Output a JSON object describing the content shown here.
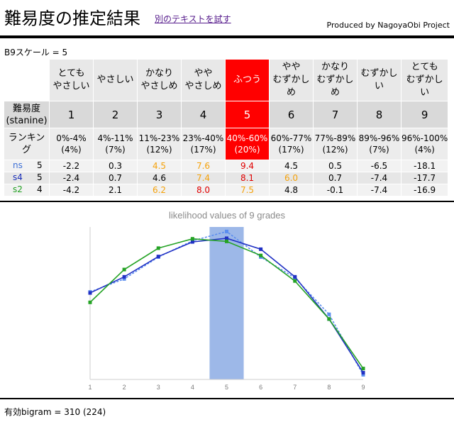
{
  "header": {
    "title": "難易度の推定結果",
    "link_text": "別のテキストを試す",
    "producer": "Produced by NagoyaObi Project"
  },
  "summary": {
    "b9_scale": "B9スケール = 5"
  },
  "table": {
    "selected_index": 4,
    "levels": [
      "とても\nやさしい",
      "やさしい",
      "かなり\nやさしめ",
      "やや\nやさしめ",
      "ふつう",
      "やや\nむずかし\nめ",
      "かなり\nむずかし\nめ",
      "むずかし\nい",
      "とても\nむずかし\nい"
    ],
    "grade_label": "難易度\n(stanine)",
    "grades": [
      "1",
      "2",
      "3",
      "4",
      "5",
      "6",
      "7",
      "8",
      "9"
    ],
    "ranking_label": "ランキン\nグ",
    "rankings": [
      "0%-4%\n(4%)",
      "4%-11%\n(7%)",
      "11%-23%\n(12%)",
      "23%-40%\n(17%)",
      "40%-60%\n(20%)",
      "60%-77%\n(17%)",
      "77%-89%\n(12%)",
      "89%-96%\n(7%)",
      "96%-100%\n(4%)"
    ],
    "scores": [
      {
        "name": "ns",
        "count": "5",
        "color": "#3c6fd6",
        "values": [
          "-2.2",
          "0.3",
          "4.5",
          "7.6",
          "9.4",
          "4.5",
          "0.5",
          "-6.5",
          "-18.1"
        ],
        "styles": [
          "",
          "",
          "orange",
          "orange",
          "red",
          "",
          "",
          "",
          ""
        ]
      },
      {
        "name": "s4",
        "count": "5",
        "color": "#1a2fb8",
        "values": [
          "-2.4",
          "0.7",
          "4.6",
          "7.4",
          "8.1",
          "6.0",
          "0.7",
          "-7.4",
          "-17.7"
        ],
        "styles": [
          "",
          "",
          "",
          "orange",
          "red",
          "orange",
          "",
          "",
          ""
        ]
      },
      {
        "name": "s2",
        "count": "4",
        "color": "#22a022",
        "values": [
          "-4.2",
          "2.1",
          "6.2",
          "8.0",
          "7.5",
          "4.8",
          "-0.1",
          "-7.4",
          "-16.9"
        ],
        "styles": [
          "",
          "",
          "orange",
          "red",
          "orange",
          "",
          "",
          "",
          ""
        ]
      }
    ]
  },
  "chart_data": {
    "type": "line",
    "title": "likelihood values of 9 grades",
    "x": [
      1,
      2,
      3,
      4,
      5,
      6,
      7,
      8,
      9
    ],
    "highlight_x": 5,
    "highlight_color": "#9db8e8",
    "grid": false,
    "series": [
      {
        "color": "#5b8def",
        "style": "dashed",
        "values": [
          -2.2,
          0.3,
          4.5,
          7.6,
          9.4,
          4.5,
          0.5,
          -6.5,
          -18.1
        ]
      },
      {
        "color": "#2131c4",
        "style": "solid",
        "values": [
          -2.4,
          0.7,
          4.6,
          7.4,
          8.1,
          6.0,
          0.7,
          -7.4,
          -17.7
        ]
      },
      {
        "color": "#25a325",
        "style": "solid",
        "values": [
          -4.2,
          2.1,
          6.2,
          8.0,
          7.5,
          4.8,
          -0.1,
          -7.4,
          -16.9
        ]
      }
    ]
  },
  "footer": {
    "bigram": "有効bigram = 310 (224)"
  }
}
